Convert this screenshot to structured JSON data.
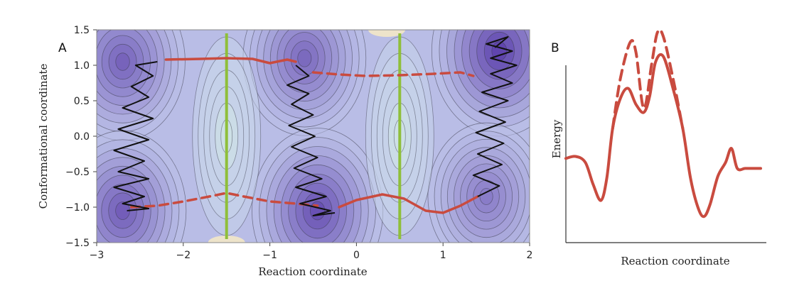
{
  "chart_data": [
    {
      "type": "contour",
      "panel_label": "A",
      "xlabel": "Reaction coordinate",
      "ylabel": "Conformational coordinate",
      "xlim": [
        -3,
        2
      ],
      "ylim": [
        -1.5,
        1.5
      ],
      "xticks": [
        -3,
        -2,
        -1,
        0,
        1,
        2
      ],
      "xtick_labels": [
        "−3",
        "−2",
        "−1",
        "0",
        "1",
        "2"
      ],
      "yticks": [
        -1.5,
        -1.0,
        -0.5,
        0.0,
        0.5,
        1.0,
        1.5
      ],
      "ytick_labels": [
        "−1.5",
        "−1.0",
        "−0.5",
        "0.0",
        "0.5",
        "1.0",
        "1.5"
      ],
      "minima": [
        {
          "x": -2.7,
          "y": 1.05,
          "depth": 0.75
        },
        {
          "x": -2.7,
          "y": -1.05,
          "depth": 0.8
        },
        {
          "x": -0.6,
          "y": 1.1,
          "depth": 0.7
        },
        {
          "x": -0.45,
          "y": -1.05,
          "depth": 0.9
        },
        {
          "x": 1.65,
          "y": 1.2,
          "depth": 1.0
        },
        {
          "x": 1.5,
          "y": -0.85,
          "depth": 0.55
        }
      ],
      "dividing_lines_x": [
        -1.5,
        0.5
      ],
      "dividing_line_color": "#8fbf3a",
      "path_color": "#c94b3f",
      "trajectory_color": "#111111",
      "upper_path_solid": [
        [
          -2.2,
          1.08
        ],
        [
          -1.8,
          1.09
        ],
        [
          -1.5,
          1.1
        ],
        [
          -1.2,
          1.09
        ],
        [
          -1.0,
          1.03
        ],
        [
          -0.8,
          1.08
        ],
        [
          -0.7,
          1.05
        ]
      ],
      "upper_path_dashed": [
        [
          -0.5,
          0.9
        ],
        [
          -0.2,
          0.87
        ],
        [
          0.1,
          0.85
        ],
        [
          0.5,
          0.86
        ],
        [
          0.9,
          0.88
        ],
        [
          1.2,
          0.9
        ],
        [
          1.35,
          0.85
        ]
      ],
      "lower_path_dashed": [
        [
          -2.6,
          -1.0
        ],
        [
          -2.3,
          -0.98
        ],
        [
          -2.0,
          -0.92
        ],
        [
          -1.7,
          -0.85
        ],
        [
          -1.5,
          -0.8
        ],
        [
          -1.3,
          -0.85
        ],
        [
          -1.0,
          -0.92
        ],
        [
          -0.7,
          -0.95
        ],
        [
          -0.45,
          -0.98
        ]
      ],
      "lower_path_solid": [
        [
          -0.2,
          -1.0
        ],
        [
          0.0,
          -0.9
        ],
        [
          0.3,
          -0.82
        ],
        [
          0.55,
          -0.88
        ],
        [
          0.8,
          -1.05
        ],
        [
          1.0,
          -1.08
        ],
        [
          1.2,
          -0.98
        ],
        [
          1.4,
          -0.85
        ]
      ],
      "trajectories": [
        [
          [
            -2.3,
            1.05
          ],
          [
            -2.55,
            1.0
          ],
          [
            -2.35,
            0.85
          ],
          [
            -2.6,
            0.7
          ],
          [
            -2.4,
            0.55
          ],
          [
            -2.7,
            0.4
          ],
          [
            -2.35,
            0.25
          ],
          [
            -2.75,
            0.1
          ],
          [
            -2.4,
            -0.05
          ],
          [
            -2.8,
            -0.2
          ],
          [
            -2.45,
            -0.35
          ],
          [
            -2.75,
            -0.5
          ],
          [
            -2.4,
            -0.6
          ],
          [
            -2.8,
            -0.72
          ],
          [
            -2.45,
            -0.85
          ],
          [
            -2.7,
            -0.95
          ],
          [
            -2.4,
            -1.02
          ],
          [
            -2.65,
            -1.05
          ]
        ],
        [
          [
            -0.7,
            1.0
          ],
          [
            -0.55,
            0.85
          ],
          [
            -0.8,
            0.72
          ],
          [
            -0.55,
            0.6
          ],
          [
            -0.75,
            0.45
          ],
          [
            -0.5,
            0.3
          ],
          [
            -0.78,
            0.15
          ],
          [
            -0.48,
            0.0
          ],
          [
            -0.75,
            -0.15
          ],
          [
            -0.45,
            -0.3
          ],
          [
            -0.72,
            -0.45
          ],
          [
            -0.4,
            -0.6
          ],
          [
            -0.7,
            -0.72
          ],
          [
            -0.35,
            -0.85
          ],
          [
            -0.65,
            -0.95
          ],
          [
            -0.3,
            -1.05
          ],
          [
            -0.5,
            -1.12
          ],
          [
            -0.25,
            -1.08
          ]
        ],
        [
          [
            1.4,
            -0.85
          ],
          [
            1.65,
            -0.7
          ],
          [
            1.35,
            -0.55
          ],
          [
            1.68,
            -0.4
          ],
          [
            1.4,
            -0.25
          ],
          [
            1.7,
            -0.1
          ],
          [
            1.38,
            0.05
          ],
          [
            1.72,
            0.2
          ],
          [
            1.42,
            0.35
          ],
          [
            1.75,
            0.5
          ],
          [
            1.45,
            0.62
          ],
          [
            1.8,
            0.75
          ],
          [
            1.55,
            0.88
          ],
          [
            1.85,
            1.0
          ],
          [
            1.55,
            1.1
          ],
          [
            1.8,
            1.2
          ],
          [
            1.5,
            1.3
          ],
          [
            1.75,
            1.4
          ],
          [
            1.6,
            1.25
          ]
        ]
      ]
    },
    {
      "type": "line",
      "panel_label": "B",
      "xlabel": "Reaction coordinate",
      "ylabel": "Energy",
      "xlim": [
        0,
        100
      ],
      "ylim": [
        0,
        100
      ],
      "series": [
        {
          "style": "solid",
          "x": [
            0,
            5,
            10,
            14,
            18,
            21,
            24,
            28,
            32,
            36,
            40,
            43,
            46,
            50,
            55,
            60,
            64,
            68,
            71,
            74,
            78,
            82,
            85,
            88,
            92,
            96,
            100
          ],
          "y": [
            35,
            36,
            33,
            22,
            14,
            25,
            50,
            65,
            70,
            62,
            58,
            66,
            83,
            86,
            70,
            50,
            25,
            10,
            6,
            12,
            26,
            33,
            40,
            30,
            30,
            30,
            30
          ]
        },
        {
          "style": "dashed",
          "x": [
            24,
            28,
            33,
            36,
            40,
            44,
            47,
            50,
            55,
            60
          ],
          "y": [
            50,
            75,
            93,
            88,
            60,
            82,
            98,
            96,
            75,
            50
          ]
        }
      ],
      "line_color": "#c94b3f"
    }
  ]
}
